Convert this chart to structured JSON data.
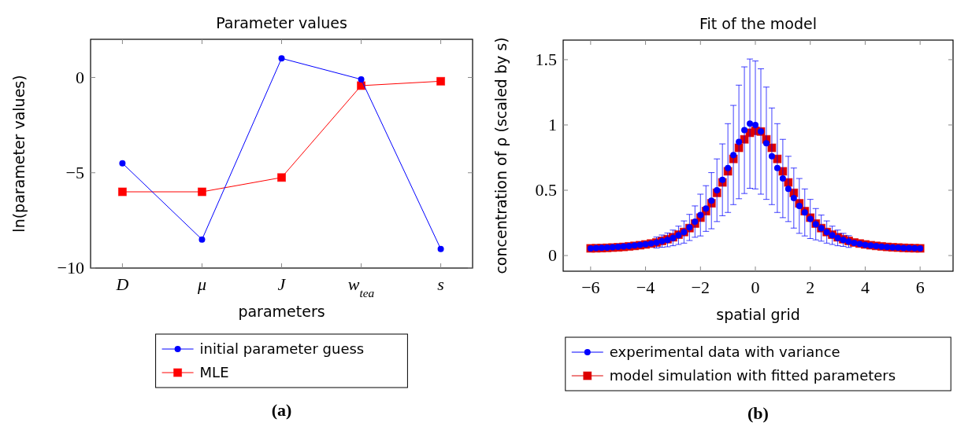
{
  "chart_data": [
    {
      "type": "line",
      "title": "Parameter values",
      "xlabel": "parameters",
      "ylabel": "ln(parameter values)",
      "categories": [
        "D",
        "μ",
        "J",
        "w$_{tea}$",
        "s"
      ],
      "series": [
        {
          "name": "initial parameter guess",
          "color": "#0000ff",
          "marker": "circle",
          "values": [
            -4.5,
            -8.5,
            1,
            -0.1,
            -9
          ]
        },
        {
          "name": "MLE",
          "color": "#ff0000",
          "marker": "square",
          "values": [
            -6,
            -6,
            -5.25,
            -0.43,
            -0.2
          ]
        }
      ],
      "ylim": [
        -10,
        2
      ],
      "yticks": [
        -10,
        -5,
        0
      ],
      "grid": false,
      "legend": "bottom",
      "line_style": "solid",
      "annotations": [
        "(a)"
      ]
    },
    {
      "type": "scatter",
      "title": "Fit of the model",
      "xlabel": "spatial grid",
      "ylabel": "concentration of ρ (scaled by s)",
      "x": [
        -6,
        -5.8,
        -5.6,
        -5.4,
        -5.2,
        -5,
        -4.8,
        -4.6,
        -4.4,
        -4.2,
        -4,
        -3.8,
        -3.6,
        -3.4,
        -3.2,
        -3,
        -2.8,
        -2.6,
        -2.4,
        -2.2,
        -2,
        -1.8,
        -1.6,
        -1.4,
        -1.2,
        -1,
        -0.8,
        -0.6,
        -0.4,
        -0.2,
        0,
        0.2,
        0.4,
        0.6,
        0.8,
        1,
        1.2,
        1.4,
        1.6,
        1.8,
        2,
        2.2,
        2.4,
        2.6,
        2.8,
        3,
        3.2,
        3.4,
        3.6,
        3.8,
        4,
        4.2,
        4.4,
        4.6,
        4.8,
        5,
        5.2,
        5.4,
        5.6,
        5.8,
        6
      ],
      "series": [
        {
          "name": "experimental data with variance",
          "color": "#0000ff",
          "marker": "circle",
          "values": [
            0.055,
            0.057,
            0.059,
            0.061,
            0.064,
            0.067,
            0.07,
            0.073,
            0.077,
            0.081,
            0.086,
            0.092,
            0.1,
            0.11,
            0.12,
            0.135,
            0.155,
            0.18,
            0.215,
            0.26,
            0.31,
            0.36,
            0.42,
            0.5,
            0.58,
            0.67,
            0.77,
            0.87,
            0.96,
            1.01,
            1.0,
            0.95,
            0.86,
            0.76,
            0.67,
            0.59,
            0.51,
            0.44,
            0.38,
            0.33,
            0.28,
            0.24,
            0.21,
            0.18,
            0.155,
            0.135,
            0.12,
            0.107,
            0.097,
            0.089,
            0.082,
            0.077,
            0.072,
            0.068,
            0.065,
            0.062,
            0.06,
            0.058,
            0.057,
            0.056,
            0.055
          ],
          "errors": [
            null,
            null,
            null,
            null,
            null,
            null,
            null,
            null,
            null,
            null,
            null,
            null,
            0.042,
            0.047,
            0.053,
            0.06,
            0.07,
            0.085,
            0.1,
            0.12,
            0.16,
            0.175,
            0.215,
            0.24,
            0.275,
            0.34,
            0.38,
            0.435,
            0.485,
            0.495,
            0.49,
            0.48,
            0.43,
            0.37,
            0.34,
            0.3,
            0.25,
            0.23,
            0.21,
            0.18,
            0.15,
            0.12,
            0.1,
            0.085,
            0.07,
            0.06,
            0.05,
            0.045,
            null,
            null,
            null,
            null,
            null,
            null,
            null,
            null,
            null,
            null,
            null,
            null,
            null
          ]
        },
        {
          "name": "model simulation with fitted parameters",
          "color": "#dd0000",
          "marker": "square",
          "values": [
            0.055,
            0.056,
            0.057,
            0.059,
            0.061,
            0.063,
            0.066,
            0.07,
            0.074,
            0.079,
            0.085,
            0.092,
            0.1,
            0.112,
            0.125,
            0.14,
            0.16,
            0.18,
            0.21,
            0.245,
            0.29,
            0.34,
            0.4,
            0.48,
            0.56,
            0.645,
            0.74,
            0.825,
            0.89,
            0.94,
            0.955,
            0.95,
            0.89,
            0.825,
            0.74,
            0.645,
            0.56,
            0.48,
            0.4,
            0.34,
            0.29,
            0.245,
            0.21,
            0.18,
            0.16,
            0.14,
            0.125,
            0.112,
            0.1,
            0.092,
            0.085,
            0.079,
            0.074,
            0.07,
            0.066,
            0.063,
            0.061,
            0.059,
            0.057,
            0.056,
            0.055
          ]
        }
      ],
      "xlim": [
        -7,
        7.2
      ],
      "xticks": [
        -6,
        -4,
        -2,
        0,
        2,
        4,
        6
      ],
      "ylim": [
        -0.12,
        1.65
      ],
      "yticks": [
        0,
        0.5,
        1,
        1.5
      ],
      "grid": false,
      "legend": "bottom",
      "annotations": [
        "(b)"
      ]
    }
  ]
}
